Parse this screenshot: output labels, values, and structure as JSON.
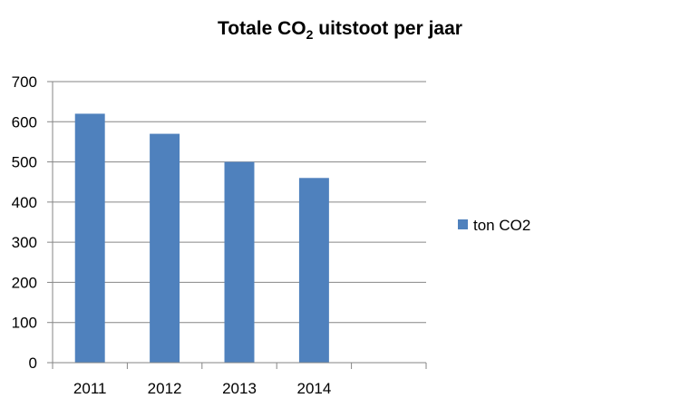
{
  "chart_data": {
    "type": "bar",
    "title_main": "Totale CO",
    "title_sub": "2",
    "title_rest": " uitstoot per jaar",
    "categories": [
      "2011",
      "2012",
      "2013",
      "2014",
      ""
    ],
    "series": [
      {
        "name": "ton CO2",
        "values": [
          620,
          570,
          500,
          460,
          null
        ]
      }
    ],
    "ylim": [
      0,
      700
    ],
    "yticks": [
      0,
      100,
      200,
      300,
      400,
      500,
      600,
      700
    ],
    "grid": true,
    "legend": "right",
    "colors": {
      "bar": "#4F81BD",
      "grid": "#868686",
      "axis": "#868686"
    }
  }
}
